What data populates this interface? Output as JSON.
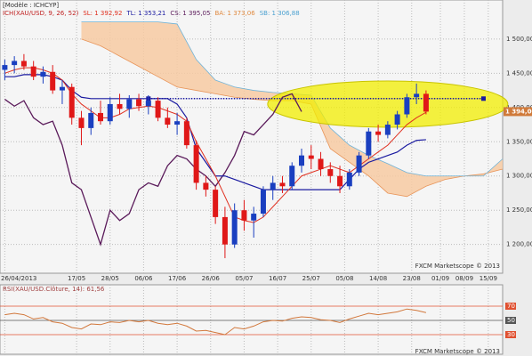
{
  "chart_data": [
    {
      "type": "candlestick",
      "model": "[Modèle : ICHCYP]",
      "legend": [
        {
          "text": "ICH(XAU/USD, 9, 26, 52)",
          "color": "#c02020"
        },
        {
          "text": "SL: 1 392,92",
          "color": "#e03020"
        },
        {
          "text": "TL: 1 353,21",
          "color": "#1a1aa0"
        },
        {
          "text": "CS: 1 395,05",
          "color": "#5a1a5a"
        },
        {
          "text": "BA: 1 373,06",
          "color": "#e08a40"
        },
        {
          "text": "SB: 1 306,88",
          "color": "#4aa0d0"
        }
      ],
      "footer": "FXCM Marketscope © 2013",
      "xlim": [
        -1,
        104
      ],
      "ylim": [
        1158,
        1557
      ],
      "xticks": [
        {
          "value": 0,
          "label": "26/04/2013"
        },
        {
          "value": 15,
          "label": "17/05"
        },
        {
          "value": 22,
          "label": "28/05"
        },
        {
          "value": 29,
          "label": "06/06"
        },
        {
          "value": 36,
          "label": "17/06"
        },
        {
          "value": 43,
          "label": "26/06"
        },
        {
          "value": 50,
          "label": "05/07"
        },
        {
          "value": 57,
          "label": "16/07"
        },
        {
          "value": 64,
          "label": "25/07"
        },
        {
          "value": 71,
          "label": "05/08"
        },
        {
          "value": 78,
          "label": "14/08"
        },
        {
          "value": 85,
          "label": "23/08"
        },
        {
          "value": 91,
          "label": "01/09"
        },
        {
          "value": 96,
          "label": "08/09"
        },
        {
          "value": 101,
          "label": "15/09"
        }
      ],
      "yticks": [
        {
          "value": 1200,
          "label": "1 200,00"
        },
        {
          "value": 1250,
          "label": "1 250,00"
        },
        {
          "value": 1300,
          "label": "1 300,00"
        },
        {
          "value": 1350,
          "label": "1 350,00"
        },
        {
          "value": 1400,
          "label": "1 400,00"
        },
        {
          "value": 1450,
          "label": "1 450,00"
        },
        {
          "value": 1500,
          "label": "1 500,00"
        }
      ],
      "grid": true,
      "last_price": {
        "value": 1394,
        "label": "1 394,00"
      },
      "up_color": "#1a3fc0",
      "down_color": "#e01818",
      "candles": {
        "x": [
          0,
          2,
          4,
          6,
          8,
          10,
          12,
          14,
          16,
          18,
          20,
          22,
          24,
          26,
          28,
          30,
          32,
          34,
          36,
          38,
          40,
          42,
          44,
          46,
          48,
          50,
          52,
          54,
          56,
          58,
          60,
          62,
          64,
          66,
          68,
          70,
          72,
          74,
          76,
          78,
          80,
          82,
          84,
          86,
          88
        ],
        "open": [
          1455,
          1462,
          1468,
          1460,
          1445,
          1452,
          1425,
          1430,
          1385,
          1370,
          1392,
          1380,
          1405,
          1398,
          1412,
          1402,
          1410,
          1385,
          1375,
          1380,
          1345,
          1290,
          1280,
          1240,
          1200,
          1250,
          1235,
          1245,
          1280,
          1290,
          1285,
          1315,
          1330,
          1325,
          1310,
          1300,
          1285,
          1305,
          1330,
          1365,
          1360,
          1375,
          1390,
          1415,
          1420
        ],
        "high": [
          1470,
          1475,
          1478,
          1468,
          1460,
          1462,
          1440,
          1435,
          1395,
          1400,
          1410,
          1415,
          1420,
          1418,
          1420,
          1418,
          1415,
          1400,
          1392,
          1385,
          1352,
          1300,
          1285,
          1255,
          1260,
          1265,
          1255,
          1285,
          1300,
          1300,
          1320,
          1340,
          1345,
          1335,
          1320,
          1315,
          1310,
          1335,
          1370,
          1375,
          1380,
          1395,
          1420,
          1435,
          1425
        ],
        "low": [
          1440,
          1450,
          1455,
          1440,
          1435,
          1420,
          1405,
          1375,
          1345,
          1360,
          1375,
          1375,
          1390,
          1385,
          1395,
          1390,
          1380,
          1370,
          1360,
          1340,
          1280,
          1270,
          1230,
          1180,
          1195,
          1220,
          1210,
          1240,
          1265,
          1275,
          1280,
          1305,
          1310,
          1300,
          1290,
          1275,
          1280,
          1300,
          1325,
          1350,
          1355,
          1368,
          1385,
          1405,
          1390
        ],
        "close": [
          1462,
          1468,
          1460,
          1445,
          1452,
          1425,
          1430,
          1385,
          1370,
          1392,
          1380,
          1405,
          1398,
          1412,
          1402,
          1410,
          1385,
          1375,
          1380,
          1345,
          1290,
          1280,
          1240,
          1200,
          1250,
          1235,
          1245,
          1280,
          1290,
          1285,
          1315,
          1330,
          1325,
          1310,
          1300,
          1285,
          1305,
          1330,
          1365,
          1360,
          1375,
          1390,
          1415,
          1420,
          1394
        ]
      },
      "tenkan": {
        "color": "#e03020",
        "x": [
          0,
          2,
          4,
          6,
          8,
          10,
          12,
          14,
          16,
          18,
          20,
          22,
          24,
          26,
          28,
          30,
          32,
          34,
          36,
          38,
          40,
          42,
          44,
          46,
          48,
          50,
          52,
          54,
          56,
          58,
          60,
          62,
          64,
          66,
          68,
          70,
          72,
          74,
          76,
          78,
          80,
          82,
          84,
          86,
          88
        ],
        "values": [
          1450,
          1455,
          1458,
          1458,
          1455,
          1450,
          1440,
          1420,
          1405,
          1395,
          1385,
          1385,
          1390,
          1398,
          1400,
          1402,
          1400,
          1395,
          1390,
          1380,
          1350,
          1325,
          1300,
          1270,
          1240,
          1235,
          1232,
          1240,
          1255,
          1270,
          1285,
          1300,
          1305,
          1310,
          1315,
          1310,
          1305,
          1315,
          1325,
          1335,
          1345,
          1360,
          1375,
          1385,
          1393
        ]
      },
      "kijun": {
        "color": "#1a1aa0",
        "x": [
          0,
          2,
          4,
          6,
          8,
          10,
          12,
          14,
          16,
          18,
          20,
          22,
          24,
          26,
          28,
          30,
          32,
          34,
          36,
          38,
          40,
          42,
          44,
          46,
          48,
          50,
          52,
          54,
          56,
          58,
          60,
          62,
          64,
          66,
          68,
          70,
          72,
          74,
          76,
          78,
          80,
          82,
          84,
          86,
          88
        ],
        "values": [
          1445,
          1445,
          1448,
          1448,
          1448,
          1445,
          1440,
          1425,
          1415,
          1413,
          1413,
          1413,
          1413,
          1413,
          1413,
          1413,
          1413,
          1413,
          1405,
          1385,
          1340,
          1320,
          1300,
          1300,
          1295,
          1290,
          1285,
          1280,
          1280,
          1280,
          1280,
          1280,
          1280,
          1280,
          1280,
          1280,
          1295,
          1310,
          1320,
          1325,
          1330,
          1335,
          1345,
          1352,
          1353
        ]
      },
      "chikou": {
        "color": "#5a1a5a",
        "x": [
          0,
          2,
          4,
          6,
          8,
          10,
          12,
          14,
          16,
          18,
          20,
          22,
          24,
          26,
          28,
          30,
          32,
          34,
          36,
          38,
          40,
          42,
          44,
          46,
          48,
          50,
          52,
          54,
          56,
          58,
          60,
          62
        ],
        "values": [
          1412,
          1402,
          1410,
          1385,
          1375,
          1380,
          1345,
          1290,
          1280,
          1240,
          1200,
          1250,
          1235,
          1245,
          1280,
          1290,
          1285,
          1315,
          1330,
          1325,
          1310,
          1300,
          1285,
          1305,
          1330,
          1365,
          1360,
          1375,
          1390,
          1415,
          1420,
          1394
        ]
      },
      "cloud": {
        "fill": "#f7caa2",
        "color_a": "#e8955a",
        "color_b": "#6fb3d8",
        "x": [
          16,
          20,
          24,
          28,
          32,
          36,
          40,
          44,
          48,
          52,
          56,
          60,
          64,
          68,
          72,
          76,
          80,
          84,
          88,
          92,
          96,
          100,
          104
        ],
        "span_a": [
          1500,
          1490,
          1475,
          1460,
          1445,
          1430,
          1425,
          1420,
          1415,
          1412,
          1410,
          1410,
          1405,
          1340,
          1320,
          1300,
          1275,
          1270,
          1285,
          1295,
          1300,
          1303,
          1310
        ],
        "span_b": [
          1525,
          1525,
          1525,
          1525,
          1525,
          1522,
          1470,
          1440,
          1430,
          1425,
          1422,
          1420,
          1418,
          1370,
          1345,
          1330,
          1318,
          1305,
          1300,
          1300,
          1300,
          1300,
          1325
        ]
      },
      "level": {
        "value": 1413,
        "x": [
          30,
          100
        ],
        "color": "#1a1aa0"
      }
    },
    {
      "type": "line",
      "title": "RSI(XAU/USD.Clôture, 14): 61,56",
      "footer": "FXCM Marketscope © 2013",
      "color": "#d2783c",
      "ylim": [
        0,
        100
      ],
      "levels": [
        {
          "value": 70,
          "color": "#e05030"
        },
        {
          "value": 50,
          "color": "#555555"
        },
        {
          "value": 30,
          "color": "#e05030"
        }
      ],
      "x": [
        0,
        2,
        4,
        6,
        8,
        10,
        12,
        14,
        16,
        18,
        20,
        22,
        24,
        26,
        28,
        30,
        32,
        34,
        36,
        38,
        40,
        42,
        44,
        46,
        48,
        50,
        52,
        54,
        56,
        58,
        60,
        62,
        64,
        66,
        68,
        70,
        72,
        74,
        76,
        78,
        80,
        82,
        84,
        86,
        88
      ],
      "values": [
        58,
        60,
        58,
        52,
        54,
        48,
        46,
        40,
        38,
        45,
        44,
        48,
        47,
        50,
        48,
        50,
        46,
        44,
        46,
        42,
        35,
        36,
        33,
        30,
        40,
        38,
        42,
        48,
        50,
        49,
        53,
        55,
        54,
        51,
        50,
        47,
        52,
        56,
        60,
        58,
        60,
        62,
        66,
        64,
        61
      ]
    }
  ]
}
